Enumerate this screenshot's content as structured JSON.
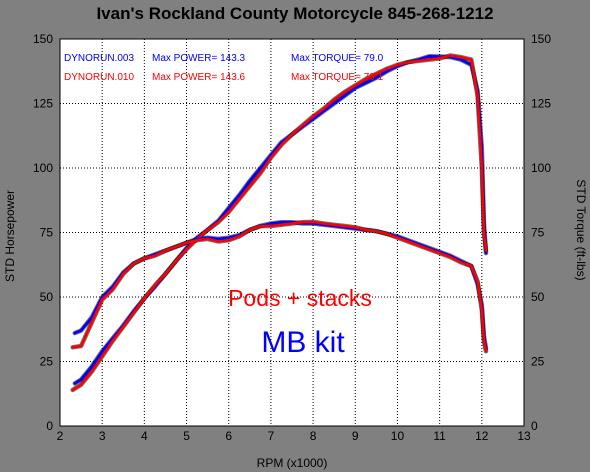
{
  "chart_data": {
    "type": "line",
    "title": "Ivan's Rockland County Motorcycle  845-268-1212",
    "xlabel": "RPM (x1000)",
    "ylabel_left": "STD Horsepower",
    "ylabel_right": "STD Torque (ft-lbs)",
    "xlim": [
      2,
      13
    ],
    "ylim": [
      0,
      150
    ],
    "grid": true,
    "x_ticks": [
      "2",
      "3",
      "4",
      "5",
      "6",
      "7",
      "8",
      "9",
      "10",
      "11",
      "12",
      "13"
    ],
    "y_ticks": [
      "0",
      "25",
      "50",
      "75",
      "100",
      "125",
      "150"
    ],
    "legend": [
      {
        "run": "DYNORUN.003",
        "power": "Max POWER= 143.3",
        "torque": "Max TORQUE= 79.0",
        "color": "#0000ff"
      },
      {
        "run": "DYNORUN.010",
        "power": "Max POWER= 143.6",
        "torque": "Max TORQUE= 79.1",
        "color": "#ff0000"
      }
    ],
    "annotations": [
      {
        "text": "Pods + stacks",
        "color": "#ff0000"
      },
      {
        "text": "MB kit",
        "color": "#0000ff"
      }
    ],
    "series": [
      {
        "name": "DYNORUN.003 power",
        "color": "#0000ff",
        "x": [
          2.35,
          2.5,
          2.75,
          3.0,
          3.25,
          3.5,
          3.75,
          4.0,
          4.25,
          4.5,
          4.75,
          5.0,
          5.25,
          5.5,
          5.75,
          6.0,
          6.25,
          6.5,
          6.75,
          7.0,
          7.25,
          7.5,
          7.75,
          8.0,
          8.25,
          8.5,
          8.75,
          9.0,
          9.25,
          9.5,
          9.75,
          10.0,
          10.25,
          10.5,
          10.75,
          11.0,
          11.25,
          11.5,
          11.75,
          11.9,
          12.0,
          12.05,
          12.1
        ],
        "y": [
          16.5,
          18,
          23,
          29,
          34,
          39,
          44.5,
          49.5,
          54,
          59,
          64,
          69,
          73,
          76,
          79.5,
          84.5,
          89.5,
          95,
          100,
          105,
          110,
          113,
          116,
          119,
          122,
          125,
          128,
          131,
          133,
          135,
          137.5,
          139.5,
          141,
          142,
          143.3,
          143.2,
          143,
          142,
          140,
          130,
          108,
          79,
          67
        ]
      },
      {
        "name": "DYNORUN.010 power",
        "color": "#ff0000",
        "x": [
          2.3,
          2.5,
          2.75,
          3.0,
          3.25,
          3.5,
          3.75,
          4.0,
          4.25,
          4.5,
          4.75,
          5.0,
          5.25,
          5.5,
          5.75,
          6.0,
          6.25,
          6.5,
          6.75,
          7.0,
          7.25,
          7.5,
          7.75,
          8.0,
          8.25,
          8.5,
          8.75,
          9.0,
          9.25,
          9.5,
          9.75,
          10.0,
          10.25,
          10.5,
          10.75,
          11.0,
          11.25,
          11.5,
          11.75,
          11.9,
          12.0,
          12.05,
          12.1
        ],
        "y": [
          14,
          16,
          21,
          27,
          33,
          38.5,
          44,
          49.5,
          54.5,
          59,
          64,
          68.5,
          72.5,
          76,
          79,
          83,
          88,
          93,
          98,
          104,
          109,
          113,
          116.5,
          120,
          123,
          126.5,
          129.5,
          132,
          134.5,
          136.5,
          138.5,
          140,
          141,
          141.5,
          142,
          142.5,
          143.6,
          143,
          142,
          128,
          100,
          75,
          68
        ]
      },
      {
        "name": "DYNORUN.003 torque",
        "color": "#0000ff",
        "x": [
          2.35,
          2.5,
          2.75,
          3.0,
          3.25,
          3.5,
          3.75,
          4.0,
          4.25,
          4.5,
          4.75,
          5.0,
          5.25,
          5.5,
          5.75,
          6.0,
          6.25,
          6.5,
          6.75,
          7.0,
          7.25,
          7.5,
          7.75,
          8.0,
          8.25,
          8.5,
          8.75,
          9.0,
          9.25,
          9.5,
          9.75,
          10.0,
          10.25,
          10.5,
          10.75,
          11.0,
          11.25,
          11.5,
          11.75,
          11.9,
          12.0,
          12.05,
          12.1
        ],
        "y": [
          36,
          37,
          42,
          50,
          54,
          59.5,
          63,
          65,
          66.5,
          68,
          69.5,
          71,
          72.5,
          73,
          72.5,
          73,
          74,
          76,
          77.5,
          78.5,
          79,
          79,
          78.5,
          78.5,
          78,
          77.5,
          77,
          76.5,
          76,
          75.5,
          74.5,
          73.5,
          72,
          70.5,
          69,
          67.5,
          66,
          64,
          62,
          55,
          47,
          35,
          30
        ]
      },
      {
        "name": "DYNORUN.010 torque",
        "color": "#ff0000",
        "x": [
          2.3,
          2.5,
          2.75,
          3.0,
          3.25,
          3.5,
          3.75,
          4.0,
          4.25,
          4.5,
          4.75,
          5.0,
          5.25,
          5.5,
          5.75,
          6.0,
          6.25,
          6.5,
          6.75,
          7.0,
          7.25,
          7.5,
          7.75,
          8.0,
          8.25,
          8.5,
          8.75,
          9.0,
          9.25,
          9.5,
          9.75,
          10.0,
          10.25,
          10.5,
          10.75,
          11.0,
          11.25,
          11.5,
          11.75,
          11.9,
          12.0,
          12.05,
          12.1
        ],
        "y": [
          30.5,
          31,
          40,
          49,
          53,
          59,
          63,
          65,
          66,
          68,
          69.5,
          71,
          72,
          72.5,
          71.5,
          72,
          73.5,
          76,
          77.5,
          77.5,
          78,
          78.5,
          79,
          79.1,
          78.5,
          78,
          77.5,
          77,
          76,
          75.5,
          74.5,
          73,
          71.5,
          70,
          68.5,
          67,
          65.5,
          63.5,
          62,
          56,
          45,
          33,
          29
        ]
      }
    ]
  }
}
